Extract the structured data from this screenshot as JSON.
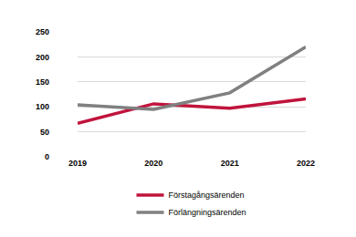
{
  "chart_data": {
    "type": "line",
    "categories": [
      "2019",
      "2020",
      "2021",
      "2022"
    ],
    "series": [
      {
        "name": "Förstagångsärenden",
        "color": "#c0143c",
        "values": [
          67,
          106,
          97,
          116
        ]
      },
      {
        "name": "Förlängningsärenden",
        "color": "#808080",
        "values": [
          104,
          95,
          128,
          220
        ]
      }
    ],
    "ylim": [
      0,
      250
    ],
    "yticks": [
      0,
      50,
      100,
      150,
      200,
      250
    ],
    "grid": true,
    "legend": "bottom"
  }
}
